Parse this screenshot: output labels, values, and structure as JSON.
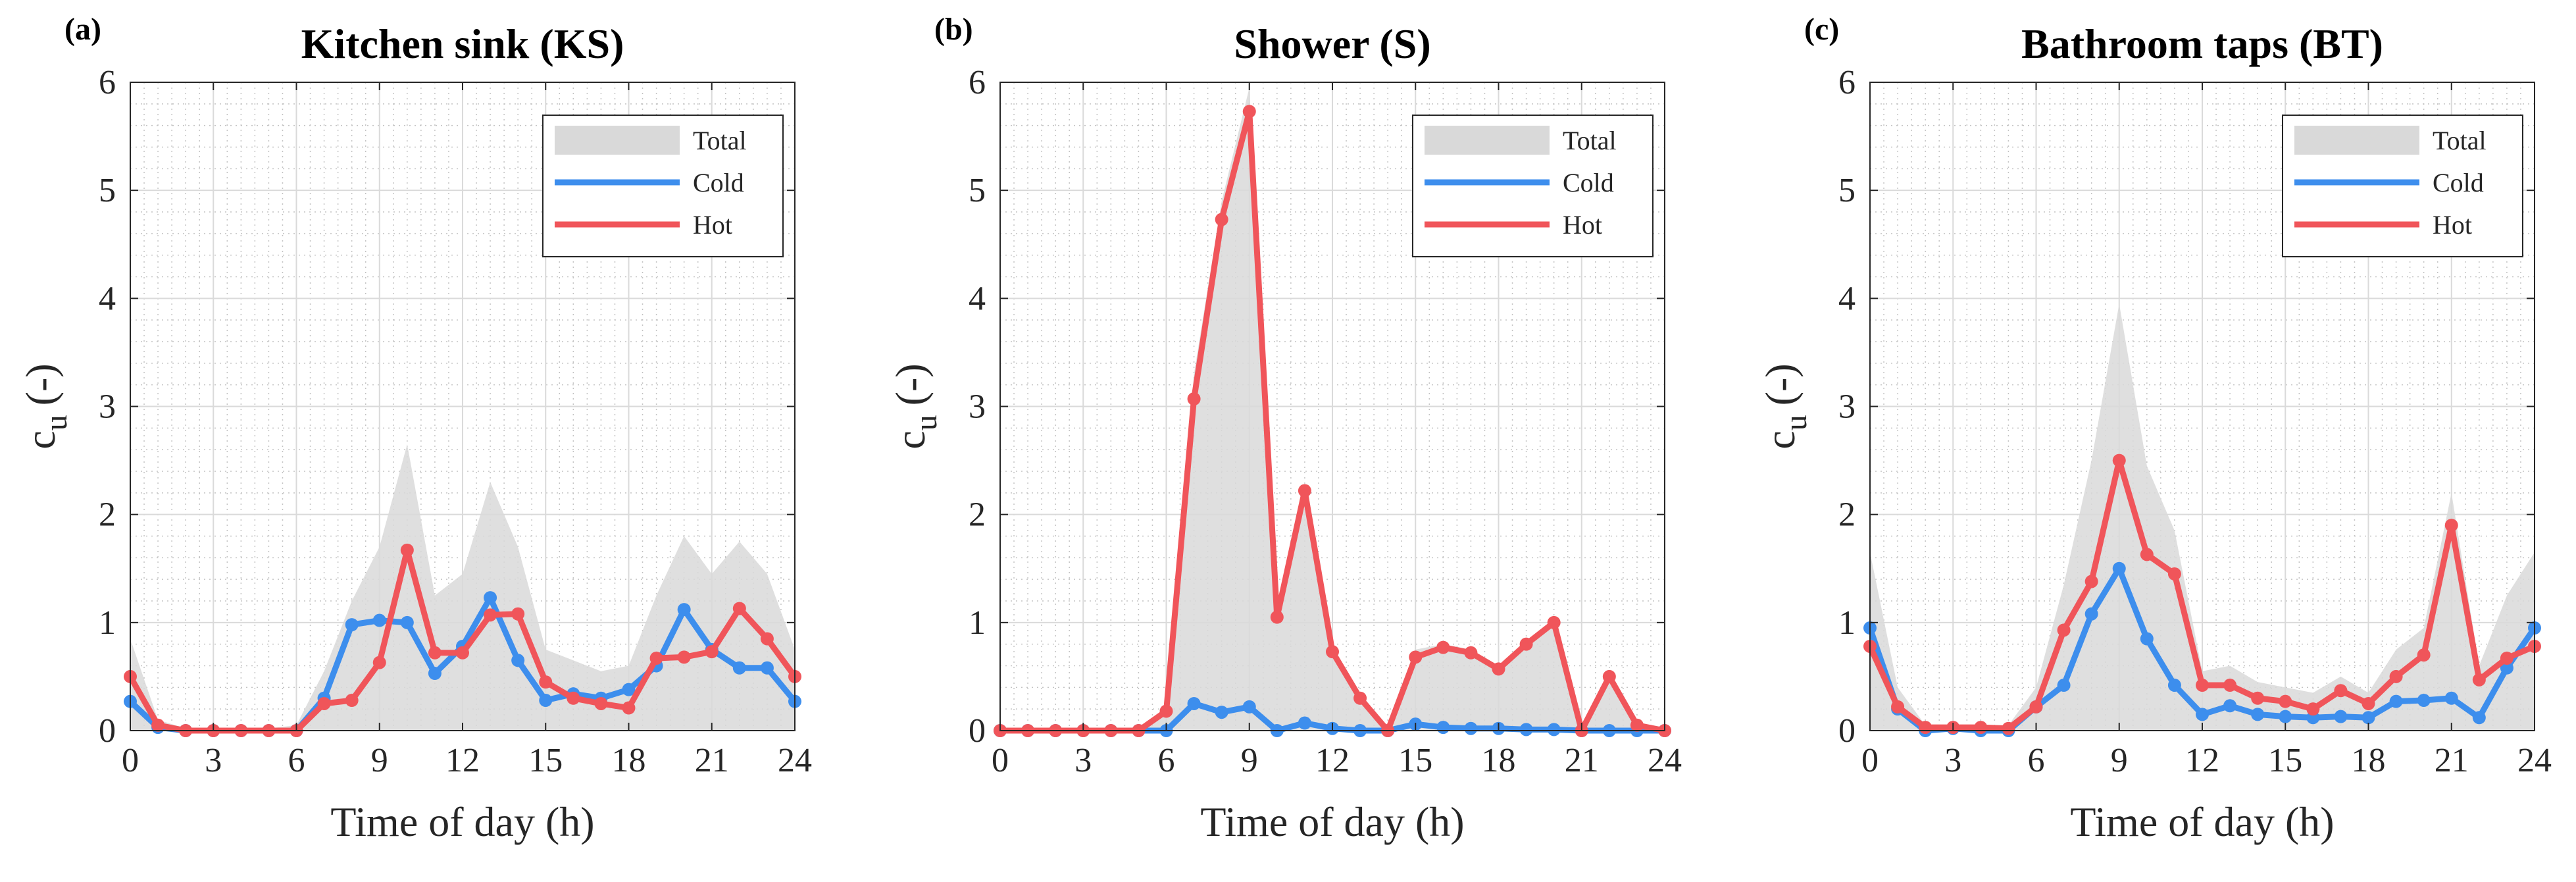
{
  "chart_data": [
    {
      "type": "line",
      "panel_label": "(a)",
      "title": "Kitchen sink (KS)",
      "xlabel": "Time of day (h)",
      "ylabel_main": "c",
      "ylabel_sub": "u",
      "ylabel_unit": "(-)",
      "xlim": [
        0,
        24
      ],
      "ylim": [
        0,
        6
      ],
      "xticks": [
        0,
        3,
        6,
        9,
        12,
        15,
        18,
        21,
        24
      ],
      "yticks": [
        0,
        1,
        2,
        3,
        4,
        5,
        6
      ],
      "grid": true,
      "legend_position": "top-right",
      "x": [
        0,
        1,
        2,
        3,
        4,
        5,
        6,
        7,
        8,
        9,
        10,
        11,
        12,
        13,
        14,
        15,
        16,
        17,
        18,
        19,
        20,
        21,
        22,
        23,
        24
      ],
      "series": [
        {
          "name": "Total",
          "style": "area",
          "color": "#d9d9d9",
          "values": [
            0.85,
            0.1,
            0.02,
            0.02,
            0.02,
            0.02,
            0.05,
            0.55,
            1.2,
            1.7,
            2.65,
            1.25,
            1.45,
            2.3,
            1.7,
            0.75,
            0.65,
            0.55,
            0.6,
            1.25,
            1.8,
            1.45,
            1.75,
            1.45,
            0.75
          ]
        },
        {
          "name": "Cold",
          "style": "line",
          "color": "#3d8eed",
          "values": [
            0.27,
            0.03,
            0.0,
            0.0,
            0.0,
            0.0,
            0.0,
            0.3,
            0.98,
            1.02,
            1.0,
            0.53,
            0.78,
            1.23,
            0.65,
            0.28,
            0.34,
            0.3,
            0.38,
            0.6,
            1.12,
            0.75,
            0.58,
            0.58,
            0.27
          ]
        },
        {
          "name": "Hot",
          "style": "line",
          "color": "#f0555a",
          "values": [
            0.5,
            0.05,
            0.0,
            0.0,
            0.0,
            0.0,
            0.0,
            0.25,
            0.28,
            0.63,
            1.67,
            0.72,
            0.72,
            1.07,
            1.08,
            0.45,
            0.3,
            0.25,
            0.21,
            0.67,
            0.68,
            0.73,
            1.13,
            0.85,
            0.5
          ]
        }
      ]
    },
    {
      "type": "line",
      "panel_label": "(b)",
      "title": "Shower (S)",
      "xlabel": "Time of day (h)",
      "ylabel_main": "c",
      "ylabel_sub": "u",
      "ylabel_unit": "(-)",
      "xlim": [
        0,
        24
      ],
      "ylim": [
        0,
        6
      ],
      "xticks": [
        0,
        3,
        6,
        9,
        12,
        15,
        18,
        21,
        24
      ],
      "yticks": [
        0,
        1,
        2,
        3,
        4,
        5,
        6
      ],
      "grid": true,
      "legend_position": "top-right",
      "x": [
        0,
        1,
        2,
        3,
        4,
        5,
        6,
        7,
        8,
        9,
        10,
        11,
        12,
        13,
        14,
        15,
        16,
        17,
        18,
        19,
        20,
        21,
        22,
        23,
        24
      ],
      "series": [
        {
          "name": "Total",
          "style": "area",
          "color": "#d9d9d9",
          "values": [
            0.0,
            0.0,
            0.0,
            0.0,
            0.0,
            0.0,
            0.2,
            3.3,
            4.9,
            5.95,
            1.05,
            2.3,
            0.75,
            0.3,
            0.0,
            0.75,
            0.8,
            0.75,
            0.6,
            0.8,
            1.0,
            0.0,
            0.5,
            0.05,
            0.0
          ]
        },
        {
          "name": "Cold",
          "style": "line",
          "color": "#3d8eed",
          "values": [
            0.0,
            0.0,
            0.0,
            0.0,
            0.0,
            0.0,
            0.0,
            0.25,
            0.17,
            0.22,
            0.0,
            0.07,
            0.02,
            0.0,
            0.0,
            0.06,
            0.03,
            0.02,
            0.02,
            0.01,
            0.01,
            0.0,
            0.0,
            0.0,
            0.0
          ]
        },
        {
          "name": "Hot",
          "style": "line",
          "color": "#f0555a",
          "values": [
            0.0,
            0.0,
            0.0,
            0.0,
            0.0,
            0.0,
            0.18,
            3.07,
            4.73,
            5.73,
            1.05,
            2.22,
            0.73,
            0.3,
            0.0,
            0.68,
            0.77,
            0.72,
            0.57,
            0.8,
            1.0,
            0.0,
            0.5,
            0.05,
            0.0
          ]
        }
      ]
    },
    {
      "type": "line",
      "panel_label": "(c)",
      "title": "Bathroom taps (BT)",
      "xlabel": "Time of day (h)",
      "ylabel_main": "c",
      "ylabel_sub": "u",
      "ylabel_unit": "(-)",
      "xlim": [
        0,
        24
      ],
      "ylim": [
        0,
        6
      ],
      "xticks": [
        0,
        3,
        6,
        9,
        12,
        15,
        18,
        21,
        24
      ],
      "yticks": [
        0,
        1,
        2,
        3,
        4,
        5,
        6
      ],
      "grid": true,
      "legend_position": "top-right",
      "x": [
        0,
        1,
        2,
        3,
        4,
        5,
        6,
        7,
        8,
        9,
        10,
        11,
        12,
        13,
        14,
        15,
        16,
        17,
        18,
        19,
        20,
        21,
        22,
        23,
        24
      ],
      "series": [
        {
          "name": "Total",
          "style": "area",
          "color": "#d9d9d9",
          "values": [
            1.65,
            0.4,
            0.05,
            0.05,
            0.05,
            0.05,
            0.4,
            1.35,
            2.5,
            3.95,
            2.45,
            1.85,
            0.55,
            0.6,
            0.45,
            0.4,
            0.35,
            0.5,
            0.35,
            0.75,
            0.95,
            2.2,
            0.6,
            1.25,
            1.65
          ]
        },
        {
          "name": "Cold",
          "style": "line",
          "color": "#3d8eed",
          "values": [
            0.95,
            0.2,
            0.0,
            0.02,
            0.0,
            0.0,
            0.22,
            0.42,
            1.08,
            1.5,
            0.85,
            0.42,
            0.15,
            0.23,
            0.15,
            0.13,
            0.12,
            0.13,
            0.12,
            0.27,
            0.28,
            0.3,
            0.12,
            0.58,
            0.95
          ]
        },
        {
          "name": "Hot",
          "style": "line",
          "color": "#f0555a",
          "values": [
            0.78,
            0.22,
            0.03,
            0.03,
            0.03,
            0.02,
            0.22,
            0.93,
            1.38,
            2.5,
            1.63,
            1.45,
            0.42,
            0.42,
            0.3,
            0.27,
            0.2,
            0.37,
            0.25,
            0.5,
            0.7,
            1.9,
            0.47,
            0.67,
            0.78
          ]
        }
      ]
    }
  ]
}
